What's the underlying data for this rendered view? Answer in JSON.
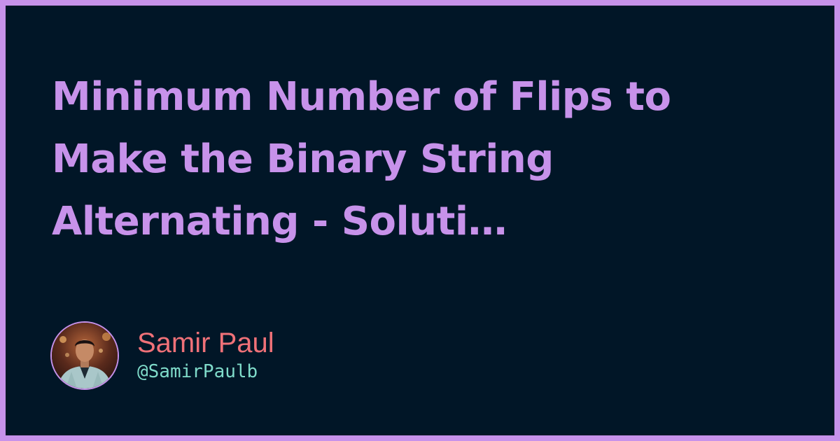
{
  "post": {
    "title_lines": [
      "Minimum Number of Flips to",
      "Make the Binary String",
      "Alternating - Soluti…"
    ]
  },
  "author": {
    "name": "Samir Paul",
    "handle": "@SamirPaulb",
    "avatar_icon": "avatar-photo"
  },
  "colors": {
    "frame": "#c792ea",
    "background": "#011627",
    "title": "#c792ea",
    "name": "#f07178",
    "handle": "#7fdbca"
  }
}
